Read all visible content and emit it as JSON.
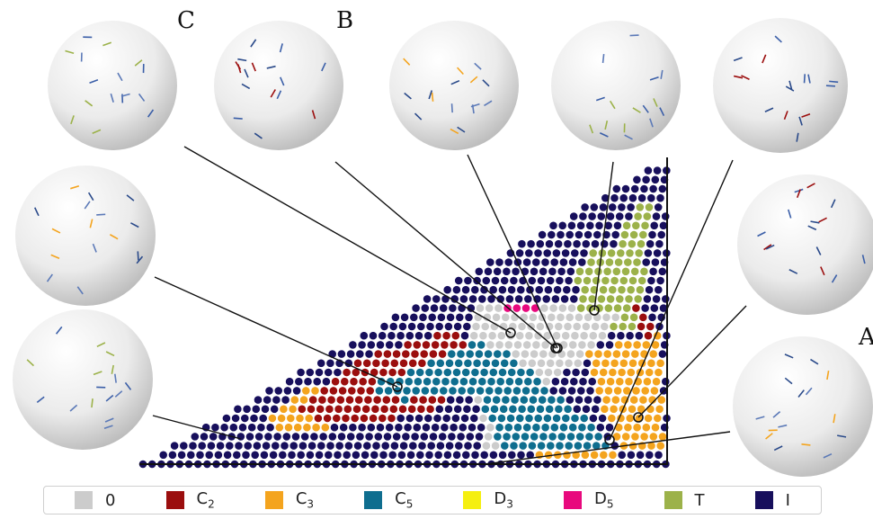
{
  "labels": {
    "a": "A",
    "b": "B",
    "c": "C"
  },
  "legend": [
    {
      "key": "zero",
      "text": "0",
      "sub": "",
      "color": "#cccccc"
    },
    {
      "key": "c2",
      "text": "C",
      "sub": "2",
      "color": "#9b0e0e"
    },
    {
      "key": "c3",
      "text": "C",
      "sub": "3",
      "color": "#f4a41e"
    },
    {
      "key": "c5",
      "text": "C",
      "sub": "5",
      "color": "#0f6e8f"
    },
    {
      "key": "d3",
      "text": "D",
      "sub": "3",
      "color": "#f5ef10"
    },
    {
      "key": "d5",
      "text": "D",
      "sub": "5",
      "color": "#e8097d"
    },
    {
      "key": "t",
      "text": "T",
      "sub": "",
      "color": "#9cb24a"
    },
    {
      "key": "i",
      "text": "I",
      "sub": "",
      "color": "#170f5c"
    }
  ]
}
